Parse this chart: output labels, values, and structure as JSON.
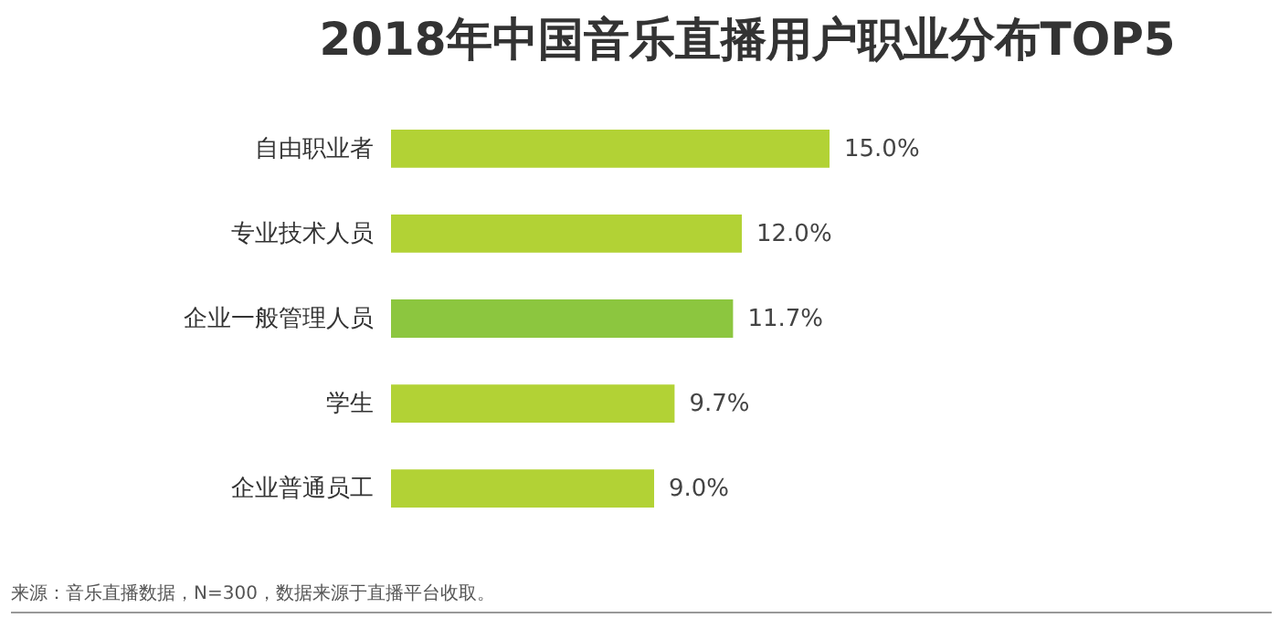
{
  "chart_data": {
    "type": "bar",
    "orientation": "horizontal",
    "title": "2018年中国音乐直播用户职业分布TOP5",
    "categories": [
      "自由职业者",
      "专业技术人员",
      "企业一般管理人员",
      "学生",
      "企业普通员工"
    ],
    "values": [
      15.0,
      12.0,
      11.7,
      9.7,
      9.0
    ],
    "colors": [
      "#b2d235",
      "#b2d235",
      "#8cc63f",
      "#b2d235",
      "#b2d235"
    ],
    "value_labels": [
      "15.0%",
      "12.0%",
      "11.7%",
      "9.7%",
      "9.0%"
    ],
    "annotations": [
      "来源：音乐直播数据，N=300，数据来源于直播平台收取。"
    ]
  }
}
